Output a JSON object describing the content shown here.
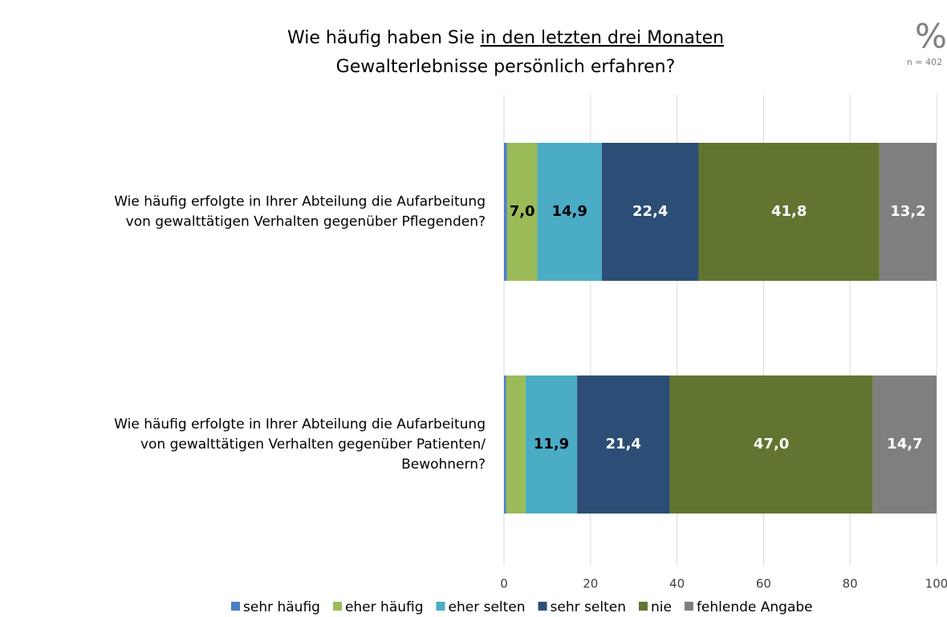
{
  "chart_data": {
    "type": "stacked-barh",
    "title": [
      [
        "Wie häufig haben Sie ",
        "in den letzten drei Monaten"
      ],
      [
        "Gewalterlebnisse persönlich erfahren?"
      ]
    ],
    "annotations": [
      "%",
      "n = 402"
    ],
    "categories": [
      [
        "Wie häufig erfolgte in Ihrer Abteilung die Aufarbeitung",
        "von gewalttätigen Verhalten gegenüber Pflegenden?"
      ],
      [
        "Wie häufig erfolgte in Ihrer Abteilung die Aufarbeitung",
        "von gewalttätigen Verhalten gegenüber Patienten/",
        "Bewohnern?"
      ]
    ],
    "series": [
      {
        "name": "sehr häufig",
        "color": "#4a7fc1",
        "values": [
          0.7,
          0.5
        ],
        "value_labels": [
          null,
          null
        ],
        "label_color": "#000000"
      },
      {
        "name": "eher häufig",
        "color": "#9bbb59",
        "values": [
          7.0,
          4.5
        ],
        "value_labels": [
          "7,0",
          null
        ],
        "label_color": "#000000"
      },
      {
        "name": "eher selten",
        "color": "#4bacc6",
        "values": [
          14.9,
          11.9
        ],
        "value_labels": [
          "14,9",
          "11,9"
        ],
        "label_color": "#000000"
      },
      {
        "name": "sehr selten",
        "color": "#2c4d75",
        "values": [
          22.4,
          21.4
        ],
        "value_labels": [
          "22,4",
          "21,4"
        ],
        "label_color": "#ffffff"
      },
      {
        "name": "nie",
        "color": "#627530",
        "values": [
          41.8,
          47.0
        ],
        "value_labels": [
          "41,8",
          "47,0"
        ],
        "label_color": "#ffffff"
      },
      {
        "name": "fehlende Angabe",
        "color": "#7f7f7f",
        "values": [
          13.2,
          14.7
        ],
        "value_labels": [
          "13,2",
          "14,7"
        ],
        "label_color": "#ffffff"
      }
    ],
    "xlim": [
      0,
      100
    ],
    "xticks": [
      0,
      20,
      40,
      60,
      80,
      100
    ],
    "grid": true
  }
}
